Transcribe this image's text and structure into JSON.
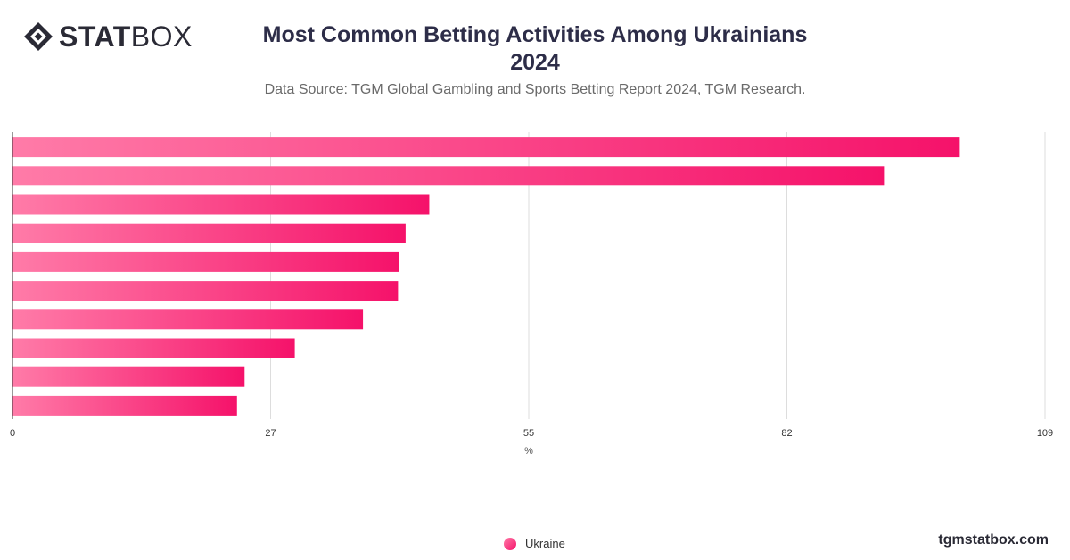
{
  "brand": {
    "logo_bold": "STAT",
    "logo_light": "BOX",
    "website": "tgmstatbox.com"
  },
  "header": {
    "title_line1": "Most Common Betting Activities Among Ukrainians",
    "title_line2": "2024",
    "subtitle": "Data Source: TGM Global Gambling and Sports Betting Report 2024, TGM Research."
  },
  "colors": {
    "bar_start": "#ff7ba8",
    "bar_end": "#f5126a",
    "grid": "#dddddd",
    "axis": "#333333",
    "text": "#2d2d48"
  },
  "chart_data": {
    "type": "bar",
    "orientation": "horizontal",
    "title": "Most Common Betting Activities Among Ukrainians 2024",
    "subtitle": "Data Source: TGM Global Gambling and Sports Betting Report 2024, TGM Research.",
    "xlabel": "%",
    "xlim": [
      0,
      109
    ],
    "xticks": [
      "0",
      "27",
      "55",
      "82",
      "109"
    ],
    "xtick_values": [
      0,
      27.25,
      54.5,
      81.75,
      109
    ],
    "grid": true,
    "legend_position": "bottom-center",
    "series": [
      {
        "name": "Ukraine",
        "values": [
          100,
          92,
          44,
          41.5,
          40.8,
          40.7,
          37,
          29.8,
          24.5,
          23.7
        ]
      }
    ]
  },
  "legend": {
    "items": [
      "Ukraine"
    ]
  }
}
